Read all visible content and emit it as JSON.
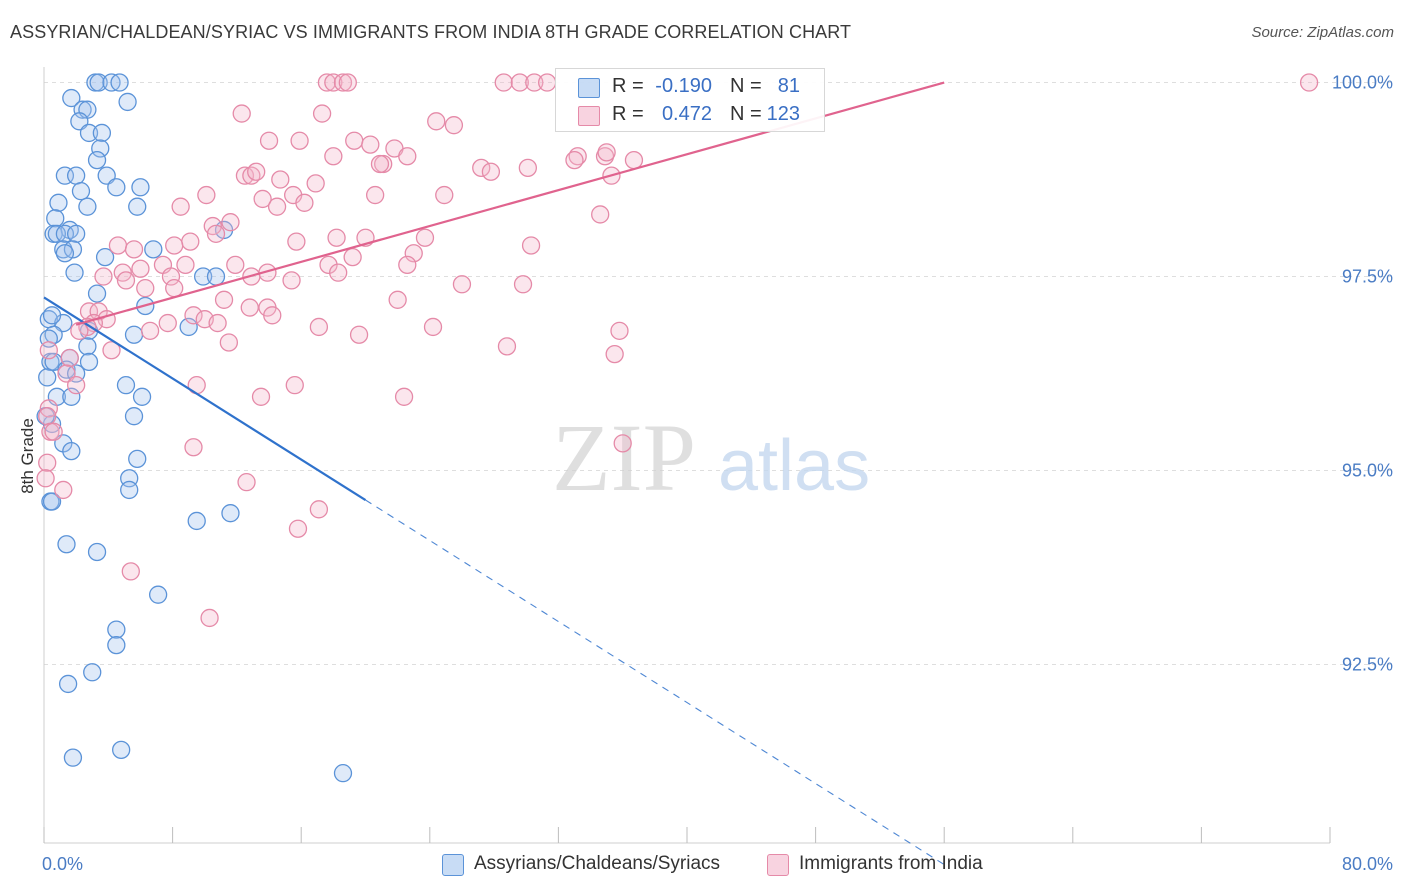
{
  "title": "ASSYRIAN/CHALDEAN/SYRIAC VS IMMIGRANTS FROM INDIA 8TH GRADE CORRELATION CHART",
  "source": "Source: ZipAtlas.com",
  "watermark": {
    "zip": "ZIP",
    "atlas": "atlas"
  },
  "colors": {
    "blue": "#5b93d8",
    "blue_fill": "rgba(164,196,238,0.35)",
    "blue_line": "#2f72cc",
    "pink": "#e58aa8",
    "pink_fill": "rgba(244,182,204,0.35)",
    "pink_line": "#e0638e",
    "tick_text": "#4a7cc4",
    "grid": "#dedede"
  },
  "legend": {
    "rows": [
      {
        "r_label": "R =",
        "r_value": "-0.190",
        "n_label": "N =",
        "n_value": "81"
      },
      {
        "r_label": "R =",
        "r_value": "0.472",
        "n_label": "N =",
        "n_value": "123"
      }
    ]
  },
  "bottom_legend": [
    "Assyrians/Chaldeans/Syriacs",
    "Immigrants from India"
  ],
  "chart_data": {
    "type": "scatter",
    "xlabel": "",
    "ylabel": "8th Grade",
    "xlim": [
      0,
      80
    ],
    "ylim": [
      90.2,
      100.2
    ],
    "x_tick_labels": [
      "0.0%",
      "80.0%"
    ],
    "y_ticks": [
      92.5,
      95.0,
      97.5,
      100.0
    ],
    "y_tick_labels": [
      "92.5%",
      "95.0%",
      "97.5%",
      "100.0%"
    ],
    "series": [
      {
        "name": "Assyrians/Chaldeans/Syriacs",
        "color_key": "blue",
        "trend": {
          "x0": 0.0,
          "y0": 97.23,
          "x1": 20.0,
          "y1": 94.62,
          "dash_to_x": 56.0
        },
        "points": [
          [
            3.2,
            100.0
          ],
          [
            3.4,
            100.0
          ],
          [
            4.2,
            100.0
          ],
          [
            4.7,
            100.0
          ],
          [
            1.7,
            99.8
          ],
          [
            5.2,
            99.75
          ],
          [
            2.4,
            99.65
          ],
          [
            2.7,
            99.65
          ],
          [
            2.2,
            99.5
          ],
          [
            2.8,
            99.35
          ],
          [
            3.6,
            99.35
          ],
          [
            3.5,
            99.15
          ],
          [
            3.3,
            99.0
          ],
          [
            1.3,
            98.8
          ],
          [
            2.0,
            98.8
          ],
          [
            3.9,
            98.8
          ],
          [
            4.5,
            98.65
          ],
          [
            6.0,
            98.65
          ],
          [
            2.3,
            98.6
          ],
          [
            0.9,
            98.45
          ],
          [
            2.7,
            98.4
          ],
          [
            5.8,
            98.4
          ],
          [
            0.7,
            98.25
          ],
          [
            1.6,
            98.1
          ],
          [
            0.6,
            98.05
          ],
          [
            0.8,
            98.05
          ],
          [
            1.3,
            98.05
          ],
          [
            2.0,
            98.05
          ],
          [
            11.2,
            98.1
          ],
          [
            1.2,
            97.85
          ],
          [
            1.8,
            97.85
          ],
          [
            1.3,
            97.8
          ],
          [
            6.8,
            97.85
          ],
          [
            3.8,
            97.75
          ],
          [
            1.9,
            97.55
          ],
          [
            9.9,
            97.5
          ],
          [
            10.7,
            97.5
          ],
          [
            3.3,
            97.28
          ],
          [
            6.3,
            97.12
          ],
          [
            0.3,
            96.95
          ],
          [
            1.2,
            96.9
          ],
          [
            2.8,
            96.8
          ],
          [
            0.6,
            96.75
          ],
          [
            5.6,
            96.75
          ],
          [
            9.0,
            96.85
          ],
          [
            2.7,
            96.6
          ],
          [
            2.8,
            96.4
          ],
          [
            1.6,
            96.45
          ],
          [
            0.4,
            96.4
          ],
          [
            0.6,
            96.4
          ],
          [
            1.4,
            96.3
          ],
          [
            2.0,
            96.25
          ],
          [
            5.1,
            96.1
          ],
          [
            0.8,
            95.95
          ],
          [
            1.7,
            95.95
          ],
          [
            6.1,
            95.95
          ],
          [
            5.6,
            95.7
          ],
          [
            0.5,
            95.6
          ],
          [
            1.2,
            95.35
          ],
          [
            1.7,
            95.25
          ],
          [
            5.8,
            95.15
          ],
          [
            5.3,
            94.9
          ],
          [
            5.3,
            94.75
          ],
          [
            0.4,
            94.6
          ],
          [
            0.5,
            94.6
          ],
          [
            9.5,
            94.35
          ],
          [
            11.6,
            94.45
          ],
          [
            1.4,
            94.05
          ],
          [
            3.3,
            93.95
          ],
          [
            7.1,
            93.4
          ],
          [
            4.5,
            92.95
          ],
          [
            4.5,
            92.75
          ],
          [
            3.0,
            92.4
          ],
          [
            1.5,
            92.25
          ],
          [
            1.8,
            91.3
          ],
          [
            4.8,
            91.4
          ],
          [
            18.6,
            91.1
          ],
          [
            0.1,
            95.7
          ],
          [
            0.3,
            96.7
          ],
          [
            0.5,
            97.0
          ],
          [
            0.2,
            96.2
          ]
        ]
      },
      {
        "name": "Immigrants from India",
        "color_key": "pink",
        "trend": {
          "x0": 2.0,
          "y0": 96.88,
          "x1": 56.0,
          "y1": 100.0
        },
        "points": [
          [
            17.6,
            100.0
          ],
          [
            18.0,
            100.0
          ],
          [
            18.6,
            100.0
          ],
          [
            18.9,
            100.0
          ],
          [
            28.6,
            100.0
          ],
          [
            29.6,
            100.0
          ],
          [
            30.5,
            100.0
          ],
          [
            31.3,
            100.0
          ],
          [
            78.7,
            100.0
          ],
          [
            12.3,
            99.6
          ],
          [
            17.3,
            99.6
          ],
          [
            24.4,
            99.5
          ],
          [
            25.5,
            99.45
          ],
          [
            14.0,
            99.25
          ],
          [
            15.9,
            99.25
          ],
          [
            19.3,
            99.25
          ],
          [
            20.3,
            99.2
          ],
          [
            21.8,
            99.15
          ],
          [
            22.6,
            99.05
          ],
          [
            18.0,
            99.05
          ],
          [
            21.1,
            98.95
          ],
          [
            20.9,
            98.95
          ],
          [
            33.2,
            99.05
          ],
          [
            34.9,
            99.05
          ],
          [
            35.0,
            99.1
          ],
          [
            36.7,
            99.0
          ],
          [
            27.2,
            98.9
          ],
          [
            27.8,
            98.85
          ],
          [
            30.1,
            98.9
          ],
          [
            12.5,
            98.8
          ],
          [
            12.9,
            98.8
          ],
          [
            13.2,
            98.85
          ],
          [
            14.7,
            98.75
          ],
          [
            35.3,
            98.8
          ],
          [
            10.1,
            98.55
          ],
          [
            15.5,
            98.55
          ],
          [
            20.6,
            98.55
          ],
          [
            24.9,
            98.55
          ],
          [
            13.6,
            98.5
          ],
          [
            16.2,
            98.45
          ],
          [
            8.5,
            98.4
          ],
          [
            14.5,
            98.4
          ],
          [
            34.6,
            98.3
          ],
          [
            10.5,
            98.15
          ],
          [
            11.6,
            98.2
          ],
          [
            10.7,
            98.05
          ],
          [
            15.7,
            97.95
          ],
          [
            18.2,
            98.0
          ],
          [
            20.0,
            98.0
          ],
          [
            23.7,
            98.0
          ],
          [
            9.1,
            97.95
          ],
          [
            4.6,
            97.9
          ],
          [
            5.6,
            97.85
          ],
          [
            8.1,
            97.9
          ],
          [
            23.0,
            97.8
          ],
          [
            19.2,
            97.75
          ],
          [
            7.4,
            97.65
          ],
          [
            8.8,
            97.65
          ],
          [
            11.9,
            97.65
          ],
          [
            17.7,
            97.65
          ],
          [
            22.6,
            97.65
          ],
          [
            6.0,
            97.6
          ],
          [
            4.9,
            97.55
          ],
          [
            13.9,
            97.55
          ],
          [
            18.3,
            97.55
          ],
          [
            3.7,
            97.5
          ],
          [
            7.9,
            97.5
          ],
          [
            5.1,
            97.45
          ],
          [
            15.4,
            97.45
          ],
          [
            29.8,
            97.4
          ],
          [
            6.3,
            97.35
          ],
          [
            8.1,
            97.35
          ],
          [
            11.2,
            97.2
          ],
          [
            12.8,
            97.1
          ],
          [
            13.9,
            97.1
          ],
          [
            2.8,
            97.05
          ],
          [
            3.4,
            97.05
          ],
          [
            9.3,
            97.0
          ],
          [
            3.9,
            96.95
          ],
          [
            10.0,
            96.95
          ],
          [
            10.8,
            96.9
          ],
          [
            3.1,
            96.9
          ],
          [
            2.7,
            96.85
          ],
          [
            17.1,
            96.85
          ],
          [
            19.6,
            96.75
          ],
          [
            24.2,
            96.85
          ],
          [
            35.8,
            96.8
          ],
          [
            6.6,
            96.8
          ],
          [
            2.2,
            96.8
          ],
          [
            11.5,
            96.65
          ],
          [
            28.8,
            96.6
          ],
          [
            4.2,
            96.55
          ],
          [
            35.5,
            96.5
          ],
          [
            0.3,
            96.55
          ],
          [
            1.6,
            96.45
          ],
          [
            1.4,
            96.25
          ],
          [
            2.0,
            96.1
          ],
          [
            9.5,
            96.1
          ],
          [
            15.6,
            96.1
          ],
          [
            13.5,
            95.95
          ],
          [
            22.4,
            95.95
          ],
          [
            0.3,
            95.8
          ],
          [
            0.2,
            95.7
          ],
          [
            0.4,
            95.5
          ],
          [
            0.6,
            95.5
          ],
          [
            9.3,
            95.3
          ],
          [
            36.0,
            95.35
          ],
          [
            0.2,
            95.1
          ],
          [
            0.1,
            94.9
          ],
          [
            12.6,
            94.85
          ],
          [
            1.2,
            94.75
          ],
          [
            17.1,
            94.5
          ],
          [
            15.8,
            94.25
          ],
          [
            5.4,
            93.7
          ],
          [
            10.3,
            93.1
          ],
          [
            33.0,
            99.0
          ],
          [
            30.3,
            97.9
          ],
          [
            26.0,
            97.4
          ],
          [
            14.2,
            97.0
          ],
          [
            7.7,
            96.9
          ],
          [
            12.9,
            97.5
          ],
          [
            22.0,
            97.2
          ],
          [
            16.9,
            98.7
          ]
        ]
      }
    ]
  }
}
